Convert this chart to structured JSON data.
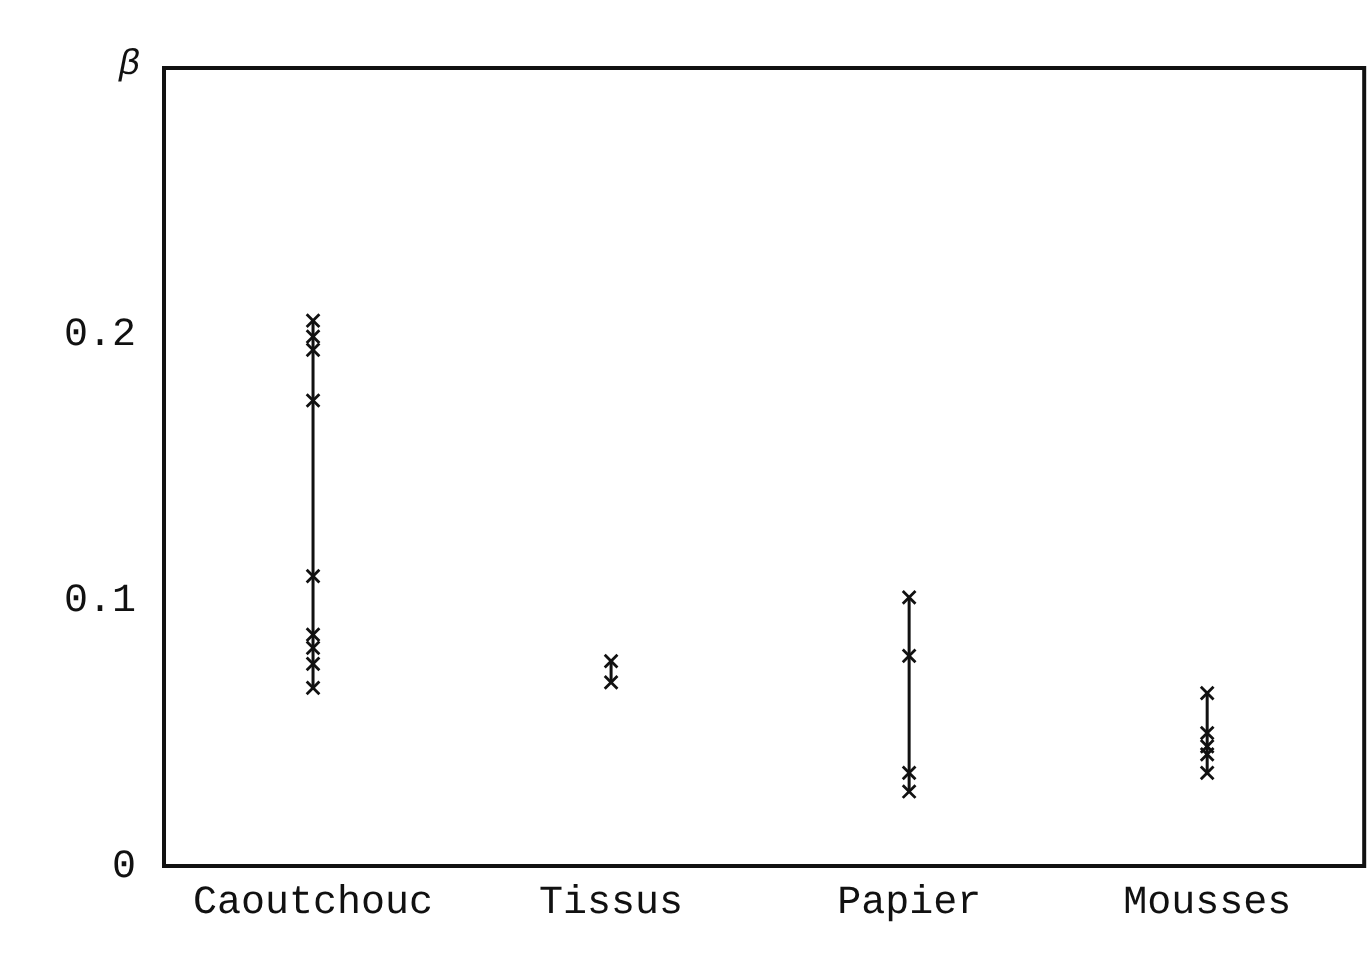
{
  "chart_data": {
    "type": "scatter",
    "ylabel": "β",
    "categories": [
      "Caoutchouc",
      "Tissus",
      "Papier",
      "Mousses"
    ],
    "ylim": [
      0,
      0.3
    ],
    "yticks": [
      0,
      0.1,
      0.2
    ],
    "grid": false,
    "legend": false,
    "marker": "cross",
    "line_style": "solid",
    "series": [
      {
        "type": "line",
        "marker": "none",
        "color": "#111111",
        "x": [
          "Caoutchouc",
          "Caoutchouc"
        ],
        "values": [
          0.205,
          0.067
        ]
      },
      {
        "type": "line",
        "marker": "none",
        "color": "#111111",
        "x": [
          "Tissus",
          "Tissus"
        ],
        "values": [
          0.077,
          0.069
        ]
      },
      {
        "type": "line",
        "marker": "none",
        "color": "#111111",
        "x": [
          "Papier",
          "Papier"
        ],
        "values": [
          0.101,
          0.028
        ]
      },
      {
        "type": "line",
        "marker": "none",
        "color": "#111111",
        "x": [
          "Mousses",
          "Mousses"
        ],
        "values": [
          0.065,
          0.035
        ]
      },
      {
        "color": "#111111",
        "x": [
          "Caoutchouc",
          "Caoutchouc",
          "Caoutchouc",
          "Caoutchouc",
          "Caoutchouc",
          "Caoutchouc",
          "Caoutchouc",
          "Caoutchouc",
          "Caoutchouc",
          "Tissus",
          "Tissus",
          "Papier",
          "Papier",
          "Papier",
          "Papier",
          "Mousses",
          "Mousses",
          "Mousses",
          "Mousses",
          "Mousses"
        ],
        "values": [
          0.205,
          0.199,
          0.194,
          0.175,
          0.109,
          0.087,
          0.082,
          0.076,
          0.067,
          0.077,
          0.069,
          0.101,
          0.079,
          0.035,
          0.028,
          0.065,
          0.05,
          0.045,
          0.042,
          0.035
        ]
      }
    ]
  }
}
